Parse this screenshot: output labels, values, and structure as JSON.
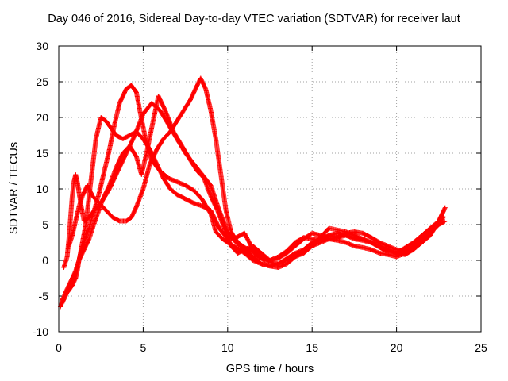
{
  "chart_data": {
    "type": "scatter",
    "title": "Day 046 of 2016, Sidereal Day-to-day VTEC variation (SDTVAR) for receiver laut",
    "xlabel": "GPS time / hours",
    "ylabel": "SDTVAR / TECUs",
    "xlim": [
      0,
      25
    ],
    "ylim": [
      -10,
      30
    ],
    "xticks": [
      "0",
      "5",
      "10",
      "15",
      "20",
      "25"
    ],
    "yticks": [
      "-10",
      "-5",
      "0",
      "5",
      "10",
      "15",
      "20",
      "25",
      "30"
    ],
    "grid": true,
    "marker": "+",
    "color": "#ff0000",
    "series": [
      {
        "name": "s1",
        "x": [
          0.2,
          0.4,
          0.6,
          0.8,
          0.9,
          1.0,
          1.1,
          1.2,
          1.4,
          1.6,
          1.8,
          2.0,
          2.2,
          2.5,
          2.8,
          3.1,
          3.4,
          3.8,
          4.2,
          4.6,
          5.0,
          5.4,
          5.8,
          6.2,
          6.6,
          7.0,
          7.5,
          8.0,
          8.5,
          9.0,
          9.5,
          10.0,
          10.5,
          11.0,
          11.5,
          12.0,
          12.5,
          13.0,
          13.5,
          14.0,
          14.5,
          15.0,
          15.5,
          16.0,
          16.5,
          17.0,
          17.5,
          18.0,
          18.5,
          19.0,
          19.5,
          20.0,
          20.5,
          21.0,
          21.5,
          22.0,
          22.5,
          22.9
        ],
        "y": [
          -5.5,
          -4.8,
          -4.2,
          -3.5,
          -3.0,
          -2.5,
          -1.5,
          0.0,
          2.5,
          5.0,
          9.0,
          13.0,
          17.0,
          20.0,
          19.5,
          18.5,
          17.5,
          17.0,
          17.5,
          18.0,
          17.0,
          15.5,
          13.5,
          11.5,
          10.0,
          9.2,
          8.6,
          8.0,
          7.6,
          7.0,
          4.5,
          3.0,
          3.2,
          3.8,
          1.5,
          0.5,
          0.0,
          0.5,
          1.3,
          2.5,
          3.2,
          3.0,
          2.8,
          3.5,
          3.8,
          3.5,
          3.2,
          3.0,
          2.5,
          1.8,
          1.2,
          1.0,
          1.3,
          1.8,
          2.5,
          3.8,
          5.0,
          5.5
        ]
      },
      {
        "name": "s2",
        "x": [
          0.1,
          0.25,
          0.4,
          0.6,
          0.8,
          1.0,
          1.2,
          1.3,
          1.5,
          1.8,
          2.1,
          2.4,
          2.7,
          3.0,
          3.3,
          3.6,
          4.0,
          4.3,
          4.6,
          4.8,
          5.1,
          5.5,
          6.0,
          6.5,
          7.0,
          7.5,
          8.0,
          8.5,
          9.0,
          9.3,
          9.7,
          10.0,
          10.5,
          11.0,
          11.5,
          12.0,
          12.5,
          13.0,
          14.0,
          15.0,
          16.0,
          17.0,
          18.0,
          19.0,
          20.0,
          21.0,
          22.0,
          22.8
        ],
        "y": [
          -6.5,
          -5.5,
          -4.5,
          -3.5,
          -2.5,
          -1.5,
          0.0,
          1.0,
          2.5,
          4.5,
          7.0,
          9.5,
          12.5,
          15.5,
          19.0,
          22.0,
          24.0,
          24.5,
          23.5,
          21.0,
          17.5,
          14.0,
          12.5,
          11.5,
          11.0,
          10.5,
          9.8,
          8.5,
          6.5,
          4.0,
          3.0,
          2.5,
          1.8,
          1.0,
          0.0,
          -0.5,
          -0.8,
          -0.5,
          1.0,
          2.0,
          4.5,
          4.0,
          3.0,
          2.0,
          1.0,
          2.5,
          4.5,
          6.0
        ]
      },
      {
        "name": "s3",
        "x": [
          0.2,
          0.4,
          0.6,
          0.8,
          1.0,
          1.2,
          1.5,
          1.8,
          2.0,
          2.3,
          2.6,
          3.0,
          3.4,
          3.8,
          4.2,
          4.6,
          4.9,
          5.2,
          5.5,
          5.9,
          6.3,
          6.8,
          7.3,
          7.8,
          8.2,
          8.6,
          9.0,
          9.4,
          9.8,
          10.2,
          10.6,
          11.0,
          11.5,
          12.0,
          12.5,
          13.0,
          13.5,
          14.0,
          14.5,
          15.0,
          15.5,
          16.0,
          16.5,
          17.0,
          17.5,
          18.0,
          18.5,
          19.0,
          19.5,
          20.0,
          20.5,
          21.0,
          21.5,
          22.0,
          22.5,
          22.8
        ],
        "y": [
          -6.0,
          -5.0,
          -4.0,
          -3.0,
          -1.5,
          0.0,
          1.5,
          3.0,
          4.5,
          6.5,
          8.5,
          10.5,
          13.0,
          15.0,
          16.0,
          14.5,
          12.0,
          15.0,
          18.5,
          23.0,
          21.0,
          18.0,
          16.0,
          14.0,
          12.5,
          11.5,
          9.0,
          7.0,
          4.5,
          2.0,
          1.0,
          1.5,
          0.5,
          -0.5,
          -0.8,
          -1.0,
          -0.5,
          0.5,
          1.5,
          2.5,
          3.0,
          3.5,
          3.2,
          3.5,
          3.0,
          2.8,
          2.5,
          2.0,
          1.5,
          1.0,
          0.8,
          1.5,
          2.5,
          3.5,
          5.5,
          7.0
        ]
      },
      {
        "name": "s4",
        "x": [
          0.6,
          0.8,
          1.0,
          1.2,
          1.4,
          1.7,
          2.0,
          2.4,
          2.8,
          3.2,
          3.6,
          4.0,
          4.3,
          4.6,
          5.0,
          5.4,
          5.8,
          6.2,
          6.6,
          7.0,
          7.4,
          7.8,
          8.1,
          8.4,
          8.7,
          9.0,
          9.3,
          9.6,
          9.9,
          10.2,
          10.6,
          11.0,
          11.5,
          11.8,
          12.2,
          12.6,
          13.0,
          13.5,
          14.0,
          14.5,
          15.0,
          15.5,
          16.0,
          16.5,
          17.0,
          17.5,
          18.0,
          18.5,
          19.0,
          19.5,
          20.0,
          20.5,
          21.0,
          21.5,
          22.0,
          22.5,
          22.8
        ],
        "y": [
          2.0,
          3.5,
          5.5,
          7.5,
          9.0,
          10.5,
          9.0,
          8.0,
          7.0,
          6.0,
          5.5,
          5.5,
          6.0,
          7.5,
          10.0,
          13.5,
          15.5,
          17.0,
          18.0,
          19.5,
          21.0,
          22.5,
          24.0,
          25.5,
          24.0,
          21.0,
          17.0,
          12.0,
          7.0,
          4.0,
          2.5,
          1.8,
          1.2,
          0.5,
          0.0,
          -0.3,
          -0.5,
          0.0,
          0.5,
          1.0,
          2.0,
          2.5,
          3.0,
          2.8,
          2.5,
          2.0,
          1.8,
          1.5,
          1.0,
          0.8,
          0.5,
          1.0,
          2.0,
          3.0,
          4.5,
          5.5,
          6.2
        ]
      },
      {
        "name": "s5",
        "x": [
          0.3,
          0.5,
          0.6,
          0.7,
          0.8,
          0.9,
          1.0,
          1.1,
          1.3,
          1.5,
          1.8,
          2.1,
          2.5,
          3.0,
          3.5,
          4.0,
          4.5,
          5.0,
          5.5,
          6.0,
          6.5,
          7.0,
          7.5,
          8.0,
          8.5,
          9.0,
          9.5,
          10.0,
          10.5,
          11.0,
          11.5,
          12.0,
          12.5,
          13.0,
          13.5,
          14.0,
          14.5,
          15.0,
          15.5,
          16.0,
          16.5,
          17.0,
          17.5,
          18.0,
          18.5,
          19.0,
          19.5,
          20.0,
          20.5,
          21.0,
          21.5,
          22.0,
          22.5,
          22.9
        ],
        "y": [
          -1.0,
          0.5,
          3.0,
          6.0,
          9.0,
          11.0,
          12.0,
          11.0,
          8.0,
          5.5,
          6.0,
          7.0,
          8.0,
          10.0,
          12.5,
          15.0,
          17.5,
          20.5,
          22.0,
          21.0,
          19.0,
          17.0,
          15.0,
          13.5,
          12.0,
          10.5,
          7.0,
          4.0,
          2.5,
          1.5,
          2.0,
          1.0,
          0.0,
          0.3,
          1.0,
          2.0,
          3.0,
          3.8,
          3.5,
          3.0,
          3.2,
          3.8,
          4.0,
          3.8,
          3.2,
          2.5,
          2.0,
          1.5,
          1.2,
          1.8,
          2.8,
          4.0,
          5.5,
          7.5
        ]
      }
    ]
  }
}
